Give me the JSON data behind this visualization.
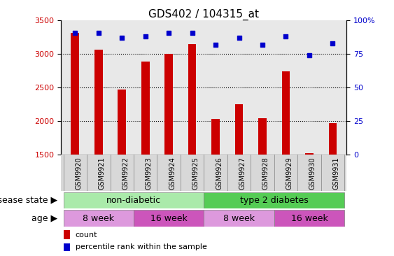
{
  "title": "GDS402 / 104315_at",
  "samples": [
    "GSM9920",
    "GSM9921",
    "GSM9922",
    "GSM9923",
    "GSM9924",
    "GSM9925",
    "GSM9926",
    "GSM9927",
    "GSM9928",
    "GSM9929",
    "GSM9930",
    "GSM9931"
  ],
  "counts": [
    3320,
    3070,
    2470,
    2890,
    3000,
    3150,
    2040,
    2250,
    2050,
    2740,
    1530,
    1970
  ],
  "percentiles": [
    91,
    91,
    87,
    88,
    91,
    91,
    82,
    87,
    82,
    88,
    74,
    83
  ],
  "bar_color": "#cc0000",
  "dot_color": "#0000cc",
  "ylim_left": [
    1500,
    3500
  ],
  "ylim_right": [
    0,
    100
  ],
  "yticks_left": [
    1500,
    2000,
    2500,
    3000,
    3500
  ],
  "yticks_right": [
    0,
    25,
    50,
    75,
    100
  ],
  "ytick_labels_right": [
    "0",
    "25",
    "50",
    "75",
    "100%"
  ],
  "grid_values": [
    2000,
    2500,
    3000
  ],
  "disease_state_labels": [
    "non-diabetic",
    "type 2 diabetes"
  ],
  "disease_state_color1": "#aaeaaa",
  "disease_state_color2": "#55cc55",
  "age_labels": [
    "8 week",
    "16 week",
    "8 week",
    "16 week"
  ],
  "age_color1": "#dd99dd",
  "age_color2": "#cc55bb",
  "legend_count_label": "count",
  "legend_pct_label": "percentile rank within the sample",
  "title_fontsize": 11,
  "tick_fontsize": 8,
  "label_fontsize": 9
}
